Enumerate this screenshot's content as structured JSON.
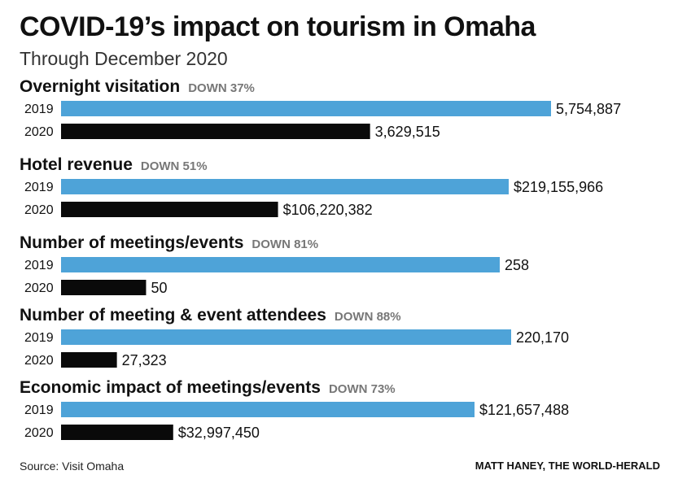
{
  "header": {
    "title": "COVID-19’s impact on tourism in Omaha",
    "subtitle": "Through December 2020"
  },
  "footer": {
    "source": "Source: Visit Omaha",
    "credit": "MATT HANEY, THE WORLD-HERALD"
  },
  "colors": {
    "bar_2019": "#4ea3d8",
    "bar_2020": "#0a0a0a",
    "change_text": "#777777"
  },
  "chart_data": [
    {
      "type": "bar",
      "title": "Overnight visitation",
      "change": "DOWN 37%",
      "categories": [
        "2019",
        "2020"
      ],
      "values": [
        5754887,
        3629515
      ],
      "labels": [
        "5,754,887",
        "3,629,515"
      ]
    },
    {
      "type": "bar",
      "title": "Hotel revenue",
      "change": "DOWN 51%",
      "categories": [
        "2019",
        "2020"
      ],
      "values": [
        219155966,
        106220382
      ],
      "labels": [
        "$219,155,966",
        "$106,220,382"
      ]
    },
    {
      "type": "bar",
      "title": "Number of meetings/events",
      "change": "DOWN 81%",
      "categories": [
        "2019",
        "2020"
      ],
      "values": [
        258,
        50
      ],
      "labels": [
        "258",
        "50"
      ]
    },
    {
      "type": "bar",
      "title": "Number of meeting & event attendees",
      "change": "DOWN 88%",
      "categories": [
        "2019",
        "2020"
      ],
      "values": [
        220170,
        27323
      ],
      "labels": [
        "220,170",
        "27,323"
      ]
    },
    {
      "type": "bar",
      "title": "Economic impact of meetings/events",
      "change": "DOWN 73%",
      "categories": [
        "2019",
        "2020"
      ],
      "values": [
        121657488,
        32997450
      ],
      "labels": [
        "$121,657,488",
        "$32,997,450"
      ]
    }
  ]
}
